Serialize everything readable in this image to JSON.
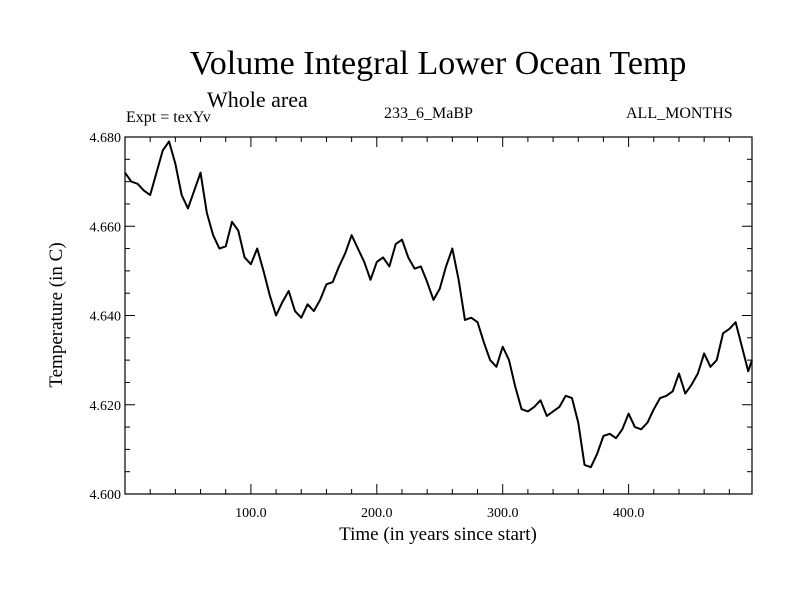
{
  "chart_data": {
    "type": "line",
    "title": "Volume Integral Lower Ocean Temp",
    "subtitle": "Whole area",
    "info_left": "Expt = texYv",
    "info_center": "233_6_MaBP",
    "info_right": "ALL_MONTHS",
    "xlabel": "Time (in years since start)",
    "ylabel": "Temperature (in C)",
    "xlim": [
      0,
      498
    ],
    "ylim": [
      4.6,
      4.68
    ],
    "xticks": [
      100,
      200,
      300,
      400
    ],
    "xtick_labels": [
      "100.0",
      "200.0",
      "300.0",
      "400.0"
    ],
    "yticks": [
      4.6,
      4.62,
      4.64,
      4.66,
      4.68
    ],
    "ytick_labels": [
      "4.600",
      "4.620",
      "4.640",
      "4.660",
      "4.680"
    ],
    "grid": false,
    "series": [
      {
        "line_color": "#000000",
        "x": [
          0,
          5,
          10,
          15,
          20,
          25,
          30,
          35,
          40,
          45,
          50,
          55,
          60,
          65,
          70,
          75,
          80,
          85,
          90,
          95,
          100,
          105,
          110,
          115,
          120,
          125,
          130,
          135,
          140,
          145,
          150,
          155,
          160,
          165,
          170,
          175,
          180,
          185,
          190,
          195,
          200,
          205,
          210,
          215,
          220,
          225,
          230,
          235,
          240,
          245,
          250,
          255,
          260,
          265,
          270,
          275,
          280,
          285,
          290,
          295,
          300,
          305,
          310,
          315,
          320,
          325,
          330,
          335,
          340,
          345,
          350,
          355,
          360,
          365,
          370,
          375,
          380,
          385,
          390,
          395,
          400,
          405,
          410,
          415,
          420,
          425,
          430,
          435,
          440,
          445,
          450,
          455,
          460,
          465,
          470,
          475,
          480,
          485,
          490,
          495,
          498
        ],
        "y": [
          4.672,
          4.67,
          4.6695,
          4.668,
          4.667,
          4.672,
          4.677,
          4.679,
          4.674,
          4.667,
          4.664,
          4.668,
          4.672,
          4.663,
          4.658,
          4.655,
          4.6555,
          4.661,
          4.659,
          4.653,
          4.6515,
          4.655,
          4.65,
          4.6445,
          4.64,
          4.643,
          4.6455,
          4.641,
          4.6395,
          4.6425,
          4.641,
          4.6435,
          4.647,
          4.6475,
          4.651,
          4.654,
          4.658,
          4.655,
          4.652,
          4.648,
          4.652,
          4.653,
          4.651,
          4.656,
          4.657,
          4.653,
          4.6505,
          4.651,
          4.6475,
          4.6435,
          4.646,
          4.651,
          4.655,
          4.648,
          4.639,
          4.6395,
          4.6385,
          4.634,
          4.63,
          4.6285,
          4.633,
          4.63,
          4.624,
          4.619,
          4.6185,
          4.6195,
          4.621,
          4.6175,
          4.6185,
          4.6195,
          4.622,
          4.6215,
          4.616,
          4.6065,
          4.606,
          4.609,
          4.613,
          4.6135,
          4.6125,
          4.6145,
          4.618,
          4.615,
          4.6145,
          4.616,
          4.619,
          4.6215,
          4.622,
          4.623,
          4.627,
          4.6225,
          4.6245,
          4.627,
          4.6315,
          4.6285,
          4.63,
          4.636,
          4.637,
          4.6385,
          4.633,
          4.6275,
          4.63
        ]
      }
    ]
  }
}
